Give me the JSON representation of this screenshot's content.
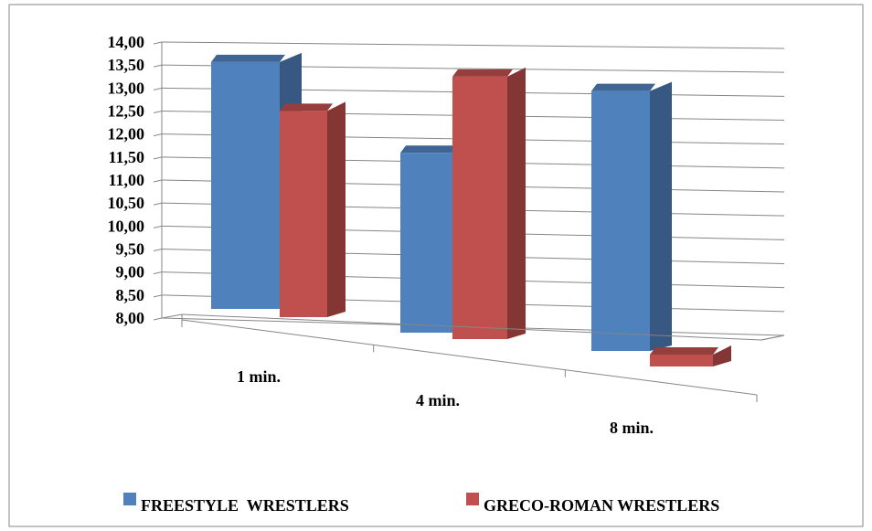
{
  "chart_data": {
    "type": "bar",
    "categories": [
      "1 min.",
      "4 min.",
      "8 min."
    ],
    "series": [
      {
        "name": "FREESTYLE  WRESTLERS",
        "values": [
          13.35,
          11.85,
          13.5
        ],
        "color": "#4f81bd"
      },
      {
        "name": "GRECO-ROMAN WRESTLERS",
        "values": [
          12.45,
          13.6,
          8.25
        ],
        "color": "#c0504d"
      }
    ],
    "yticks": [
      "8,00",
      "8,50",
      "9,00",
      "9,50",
      "10,00",
      "10,50",
      "11,00",
      "11,50",
      "12,00",
      "12,50",
      "13,00",
      "13,50",
      "14,00"
    ],
    "ylim": [
      8,
      14
    ],
    "grid": true,
    "legend_position": "bottom",
    "style": "3d-clustered-column"
  }
}
